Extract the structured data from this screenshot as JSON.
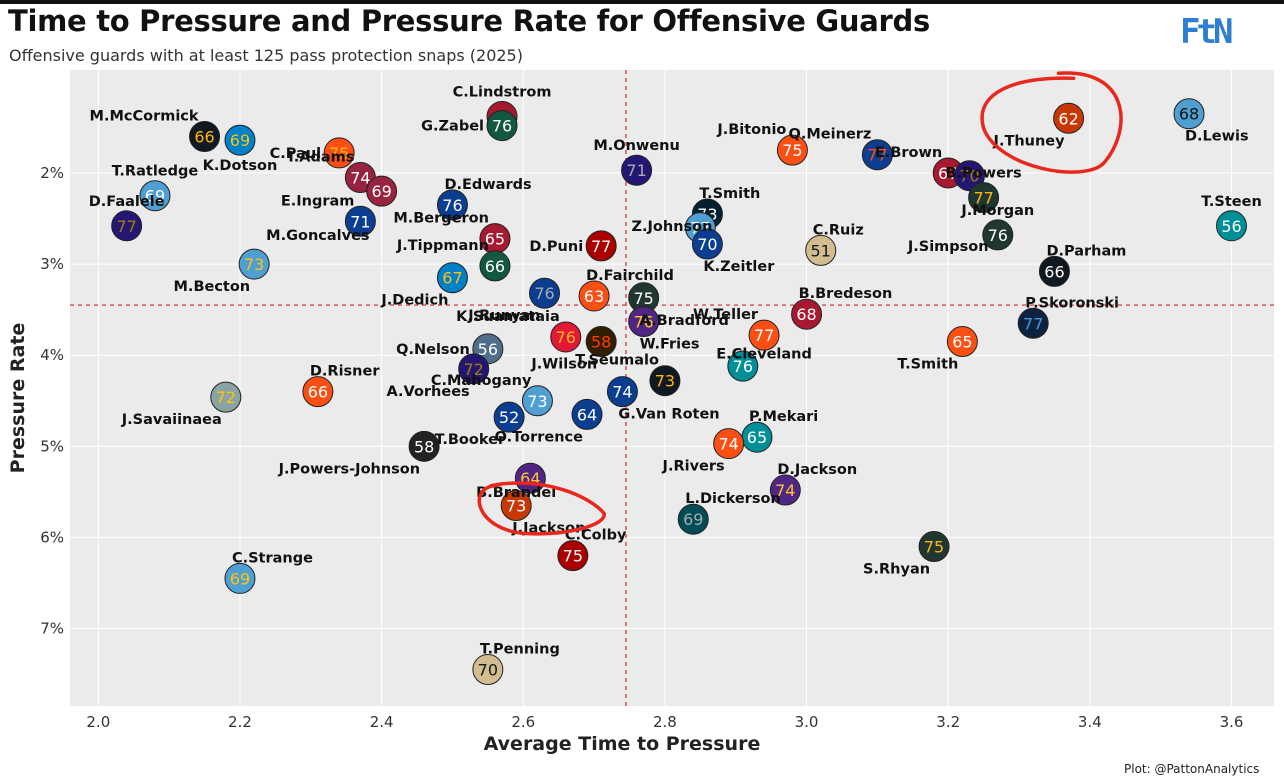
{
  "header": {
    "title": "Time to Pressure and Pressure Rate for Offensive Guards",
    "subtitle": "Offensive guards with at least 125 pass protection snaps (2025)",
    "logo": "FtN",
    "credit": "Plot: @PattonAnalytics"
  },
  "colors": {
    "panel": "#ebebeb",
    "grid": "#ffffff",
    "refline": "#cc2a2a",
    "highlight": "#e8281e",
    "logo": "#2f7fd0"
  },
  "chart_data": {
    "type": "scatter",
    "title": "Time to Pressure and Pressure Rate for Offensive Guards",
    "xlabel": "Average Time to Pressure",
    "ylabel": "Pressure Rate",
    "xlim": [
      1.96,
      3.66
    ],
    "ylim": [
      0.0087,
      0.0785
    ],
    "y_inverted": true,
    "x_ticks": [
      2.0,
      2.2,
      2.4,
      2.6,
      2.8,
      3.0,
      3.2,
      3.4,
      3.6
    ],
    "x_tick_labels": [
      "2.0",
      "2.2",
      "2.4",
      "2.6",
      "2.8",
      "3.0",
      "3.2",
      "3.4",
      "3.6"
    ],
    "y_ticks": [
      0.02,
      0.03,
      0.04,
      0.05,
      0.06,
      0.07
    ],
    "y_tick_labels": [
      "2%",
      "3%",
      "4%",
      "5%",
      "6%",
      "7%"
    ],
    "ref_lines": {
      "x_mean": 2.745,
      "y_mean": 0.0345
    },
    "highlighted": [
      "J.Thuney",
      "J.Jackson"
    ],
    "points": [
      {
        "name": "C.Lindstrom",
        "x": 2.57,
        "y": 0.0138,
        "num": "",
        "fill": "#a71930",
        "text": "#ffffff",
        "label": "above"
      },
      {
        "name": "G.Zabel",
        "x": 2.57,
        "y": 0.0148,
        "num": "76",
        "fill": "#125740",
        "text": "#ffffff",
        "label": "left"
      },
      {
        "name": "M.McCormick",
        "x": 2.15,
        "y": 0.016,
        "num": "66",
        "fill": "#101820",
        "text": "#ffb612",
        "label": "aboveleft"
      },
      {
        "name": "K.Dotson",
        "x": 2.2,
        "y": 0.0164,
        "num": "69",
        "fill": "#0080c6",
        "text": "#ffc20e",
        "label": "below"
      },
      {
        "name": "C.Paul",
        "x": 2.34,
        "y": 0.0178,
        "num": "75",
        "fill": "#fb4f14",
        "text": "#ffb612",
        "label": "left"
      },
      {
        "name": "I.Adams",
        "x": 2.37,
        "y": 0.0205,
        "num": "74",
        "fill": "#97233f",
        "text": "#ffffff",
        "label": "aboveleft"
      },
      {
        "name": "",
        "x": 2.4,
        "y": 0.022,
        "num": "69",
        "fill": "#97233f",
        "text": "#ffffff",
        "label": "none"
      },
      {
        "name": "T.Ratledge",
        "x": 2.08,
        "y": 0.0225,
        "num": "69",
        "fill": "#4f9fd3",
        "text": "#ffffff",
        "label": "above"
      },
      {
        "name": "E.Ingram",
        "x": 2.37,
        "y": 0.0253,
        "num": "71",
        "fill": "#0b3d91",
        "text": "#ffffff",
        "label": "aboveleft"
      },
      {
        "name": "M.Goncalves",
        "x": 2.31,
        "y": 0.0268,
        "num": "",
        "fill": "",
        "text": "",
        "label": "text"
      },
      {
        "name": "D.Faalele",
        "x": 2.04,
        "y": 0.0258,
        "num": "77",
        "fill": "#241773",
        "text": "#9e7c0c",
        "label": "above"
      },
      {
        "name": "D.Edwards",
        "x": 2.5,
        "y": 0.0235,
        "num": "76",
        "fill": "#0b3d91",
        "text": "#ffffff",
        "label": "aboveright"
      },
      {
        "name": "M.Bergeron",
        "x": 2.56,
        "y": 0.0272,
        "num": "65",
        "fill": "#a71930",
        "text": "#ffffff",
        "label": "aboveleft"
      },
      {
        "name": "J.Tippmann",
        "x": 2.56,
        "y": 0.0302,
        "num": "66",
        "fill": "#125740",
        "text": "#ffffff",
        "label": "aboveleft"
      },
      {
        "name": "J.Dedich",
        "x": 2.5,
        "y": 0.0315,
        "num": "67",
        "fill": "#0080c6",
        "text": "#ffc20e",
        "label": "belowleft"
      },
      {
        "name": "M.Becton",
        "x": 2.22,
        "y": 0.03,
        "num": "73",
        "fill": "#4f9fd3",
        "text": "#ffc20e",
        "label": "belowleft"
      },
      {
        "name": "J.Runyan",
        "x": 2.63,
        "y": 0.0332,
        "num": "76",
        "fill": "#0b3d91",
        "text": "#a5acaf",
        "label": "belowleft"
      },
      {
        "name": "M.Onwenu",
        "x": 2.76,
        "y": 0.0197,
        "num": "71",
        "fill": "#241773",
        "text": "#a5acaf",
        "label": "above"
      },
      {
        "name": "Z.Johnson",
        "x": 2.81,
        "y": 0.0258,
        "num": "",
        "fill": "",
        "text": "",
        "label": "text"
      },
      {
        "name": "D.Puni",
        "x": 2.71,
        "y": 0.028,
        "num": "77",
        "fill": "#aa0000",
        "text": "#ffffff",
        "label": "left"
      },
      {
        "name": "T.Smith",
        "x": 2.86,
        "y": 0.0245,
        "num": "73",
        "fill": "#03202f",
        "text": "#ffffff",
        "label": "aboveright"
      },
      {
        "name": "",
        "x": 2.85,
        "y": 0.026,
        "num": "77",
        "fill": "#4f9fd3",
        "text": "#ffffff",
        "label": "none"
      },
      {
        "name": "K.Zeitler",
        "x": 2.86,
        "y": 0.0278,
        "num": "70",
        "fill": "#0b3d91",
        "text": "#ffffff",
        "label": "belowright"
      },
      {
        "name": "J.Bitonio",
        "x": 2.98,
        "y": 0.0175,
        "num": "75",
        "fill": "#fb4f14",
        "text": "#ffffff",
        "label": "aboveleft"
      },
      {
        "name": "Q.Meinerz",
        "x": 3.1,
        "y": 0.018,
        "num": "77",
        "fill": "#0b3d91",
        "text": "#fb4f14",
        "label": "aboveleft"
      },
      {
        "name": "E.Brown",
        "x": 3.2,
        "y": 0.02,
        "num": "67",
        "fill": "#a71930",
        "text": "#ffffff",
        "label": "aboveleft"
      },
      {
        "name": "",
        "x": 3.23,
        "y": 0.0203,
        "num": "70",
        "fill": "#241773",
        "text": "#9e7c0c",
        "label": "none"
      },
      {
        "name": "B.Powers",
        "x": 3.25,
        "y": 0.0227,
        "num": "77",
        "fill": "#203731",
        "text": "#ffb612",
        "label": "above"
      },
      {
        "name": "J.Morgan",
        "x": 3.27,
        "y": 0.0268,
        "num": "76",
        "fill": "#203731",
        "text": "#ffffff",
        "label": "above"
      },
      {
        "name": "J.Simpson",
        "x": 3.2,
        "y": 0.028,
        "num": "",
        "fill": "",
        "text": "",
        "label": "text"
      },
      {
        "name": "J.Thuney",
        "x": 3.37,
        "y": 0.014,
        "num": "62",
        "fill": "#c83803",
        "text": "#ffffff",
        "label": "belowleft"
      },
      {
        "name": "D.Lewis",
        "x": 3.54,
        "y": 0.0135,
        "num": "68",
        "fill": "#4f9fd3",
        "text": "#111111",
        "label": "belowright"
      },
      {
        "name": "T.Steen",
        "x": 3.6,
        "y": 0.0258,
        "num": "56",
        "fill": "#008e97",
        "text": "#ffffff",
        "label": "above"
      },
      {
        "name": "C.Ruiz",
        "x": 3.02,
        "y": 0.0285,
        "num": "51",
        "fill": "#d3bc8d",
        "text": "#101820",
        "label": "aboveright"
      },
      {
        "name": "D.Parham",
        "x": 3.35,
        "y": 0.0308,
        "num": "66",
        "fill": "#101820",
        "text": "#ffffff",
        "label": "aboveright"
      },
      {
        "name": "D.Fairchild",
        "x": 2.7,
        "y": 0.0335,
        "num": "63",
        "fill": "#fb4f14",
        "text": "#ffffff",
        "label": "aboveright"
      },
      {
        "name": "A.Bradford",
        "x": 2.77,
        "y": 0.0337,
        "num": "75",
        "fill": "#203731",
        "text": "#ffffff",
        "label": "belowright"
      },
      {
        "name": "W.Fries",
        "x": 2.77,
        "y": 0.0363,
        "num": "76",
        "fill": "#4f2683",
        "text": "#ffc62f",
        "label": "belowright"
      },
      {
        "name": "B.Bredeson",
        "x": 3.0,
        "y": 0.0355,
        "num": "68",
        "fill": "#a71930",
        "text": "#ffffff",
        "label": "aboveright"
      },
      {
        "name": "P.Skoronski",
        "x": 3.32,
        "y": 0.0365,
        "num": "77",
        "fill": "#0c2340",
        "text": "#4b92db",
        "label": "aboveright"
      },
      {
        "name": "W.Teller",
        "x": 2.94,
        "y": 0.0378,
        "num": "77",
        "fill": "#fb4f14",
        "text": "#ffffff",
        "label": "aboveleft"
      },
      {
        "name": "K.Suamataia",
        "x": 2.66,
        "y": 0.038,
        "num": "76",
        "fill": "#e31837",
        "text": "#ffb81c",
        "label": "aboveleft"
      },
      {
        "name": "J.Wilson",
        "x": 2.71,
        "y": 0.0385,
        "num": "58",
        "fill": "#311d00",
        "text": "#ff3c00",
        "label": "belowleft"
      },
      {
        "name": "T.Smith",
        "x": 3.22,
        "y": 0.0385,
        "num": "65",
        "fill": "#fb4f14",
        "text": "#ffffff",
        "label": "belowleft"
      },
      {
        "name": "E.Cleveland",
        "x": 2.94,
        "y": 0.0398,
        "num": "",
        "fill": "",
        "text": "",
        "label": "text"
      },
      {
        "name": "Q.Nelson",
        "x": 2.55,
        "y": 0.0393,
        "num": "56",
        "fill": "#4f6e8a",
        "text": "#ffffff",
        "label": "left"
      },
      {
        "name": "A.Vorhees",
        "x": 2.53,
        "y": 0.0415,
        "num": "72",
        "fill": "#241773",
        "text": "#9e7c0c",
        "label": "belowleft"
      },
      {
        "name": "T.Seumalo",
        "x": 2.8,
        "y": 0.0428,
        "num": "73",
        "fill": "#101820",
        "text": "#ffb612",
        "label": "aboveleft"
      },
      {
        "name": "",
        "x": 2.91,
        "y": 0.0412,
        "num": "76",
        "fill": "#008e97",
        "text": "#ffffff",
        "label": "none"
      },
      {
        "name": "D.Risner",
        "x": 2.31,
        "y": 0.044,
        "num": "66",
        "fill": "#fb4f14",
        "text": "#ffffff",
        "label": "aboveright"
      },
      {
        "name": "C.Mahogany",
        "x": 2.62,
        "y": 0.045,
        "num": "73",
        "fill": "#4f9fd3",
        "text": "#ffffff",
        "label": "aboveleft"
      },
      {
        "name": "G.Van Roten",
        "x": 2.74,
        "y": 0.044,
        "num": "74",
        "fill": "#0b3d91",
        "text": "#ffffff",
        "label": "belowright"
      },
      {
        "name": "J.Savaiinaea",
        "x": 2.18,
        "y": 0.0446,
        "num": "72",
        "fill": "#8aa3a3",
        "text": "#ffc20e",
        "label": "belowleft"
      },
      {
        "name": "T.Booker",
        "x": 2.58,
        "y": 0.0468,
        "num": "52",
        "fill": "#0b3d91",
        "text": "#ffffff",
        "label": "belowleft"
      },
      {
        "name": "O.Torrence",
        "x": 2.69,
        "y": 0.0465,
        "num": "64",
        "fill": "#0b3d91",
        "text": "#ffffff",
        "label": "belowleft"
      },
      {
        "name": "P.Mekari",
        "x": 2.93,
        "y": 0.049,
        "num": "65",
        "fill": "#008e97",
        "text": "#ffffff",
        "label": "aboveright"
      },
      {
        "name": "J.Rivers",
        "x": 2.89,
        "y": 0.0497,
        "num": "74",
        "fill": "#fb4f14",
        "text": "#ffffff",
        "label": "belowleft"
      },
      {
        "name": "J.Powers-Johnson",
        "x": 2.46,
        "y": 0.05,
        "num": "58",
        "fill": "#222222",
        "text": "#ffffff",
        "label": "belowleft"
      },
      {
        "name": "",
        "x": 2.61,
        "y": 0.0535,
        "num": "64",
        "fill": "#4f2683",
        "text": "#ffc62f",
        "label": "none"
      },
      {
        "name": "D.Jackson",
        "x": 2.97,
        "y": 0.0548,
        "num": "74",
        "fill": "#4f2683",
        "text": "#ffc62f",
        "label": "aboveright"
      },
      {
        "name": "B.Brandel",
        "x": 2.59,
        "y": 0.055,
        "num": "",
        "fill": "",
        "text": "",
        "label": "text"
      },
      {
        "name": "J.Jackson",
        "x": 2.59,
        "y": 0.0565,
        "num": "73",
        "fill": "#c83803",
        "text": "#ffffff",
        "label": "belowright"
      },
      {
        "name": "L.Dickerson",
        "x": 2.84,
        "y": 0.058,
        "num": "69",
        "fill": "#004c54",
        "text": "#a5acaf",
        "label": "aboveright"
      },
      {
        "name": "C.Colby",
        "x": 2.67,
        "y": 0.062,
        "num": "75",
        "fill": "#aa0000",
        "text": "#ffffff",
        "label": "aboveright"
      },
      {
        "name": "S.Rhyan",
        "x": 3.18,
        "y": 0.061,
        "num": "75",
        "fill": "#203731",
        "text": "#ffb612",
        "label": "belowleft"
      },
      {
        "name": "C.Strange",
        "x": 2.2,
        "y": 0.0645,
        "num": "69",
        "fill": "#4f9fd3",
        "text": "#ffc20e",
        "label": "aboveright"
      },
      {
        "name": "T.Penning",
        "x": 2.55,
        "y": 0.0745,
        "num": "70",
        "fill": "#d3bc8d",
        "text": "#101820",
        "label": "aboveright"
      }
    ]
  }
}
